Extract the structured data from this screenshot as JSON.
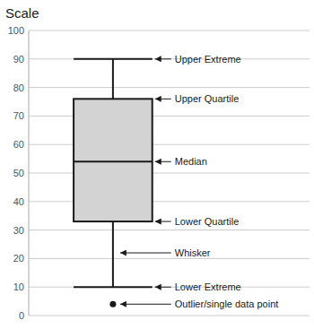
{
  "chart_data": {
    "type": "box",
    "title": "Scale",
    "ylim": [
      0,
      100
    ],
    "yticks": [
      0,
      10,
      20,
      30,
      40,
      50,
      60,
      70,
      80,
      90,
      100
    ],
    "q1": 33,
    "q3": 76,
    "median": 54,
    "whisker_low": 10,
    "whisker_high": 90,
    "outliers": [
      4
    ],
    "color": "#d3d3d3",
    "grid": true,
    "tick_labels": "y",
    "annotations": [
      {
        "label": "Upper Extreme",
        "y": 90
      },
      {
        "label": "Upper Quartile",
        "y": 76
      },
      {
        "label": "Median",
        "y": 54
      },
      {
        "label": "Lower Quartile",
        "y": 33
      },
      {
        "label": "Whisker",
        "y": 22
      },
      {
        "label": "Lower Extreme",
        "y": 10
      },
      {
        "label": "Outlier/single data point",
        "y": 4
      }
    ]
  }
}
